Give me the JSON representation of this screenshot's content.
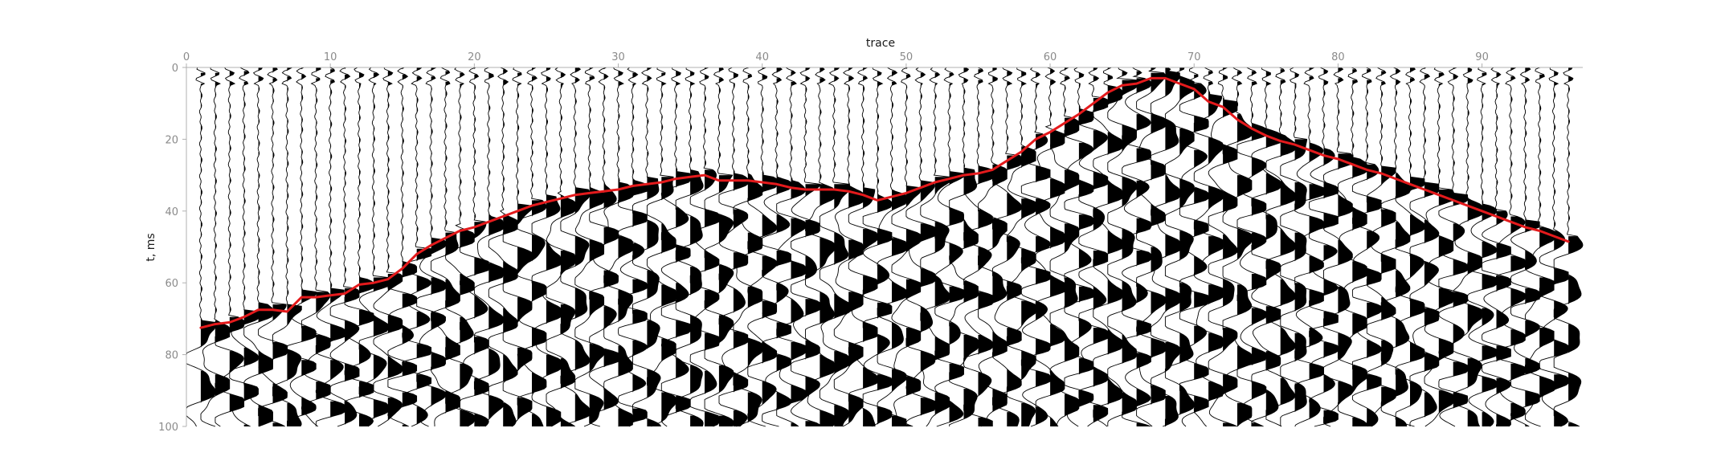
{
  "chart_data": {
    "type": "seismic-wiggle",
    "xlabel": "trace",
    "ylabel": "t, ms",
    "x_axis_position": "top",
    "xlim": [
      0,
      97
    ],
    "ylim": [
      0,
      100
    ],
    "y_inverted": true,
    "xticks": [
      0,
      10,
      20,
      30,
      40,
      50,
      60,
      70,
      80,
      90
    ],
    "yticks": [
      0,
      20,
      40,
      60,
      80,
      100
    ],
    "trace_count": 96,
    "colors": {
      "fill": "#000000",
      "trace": "#000000",
      "pick": "#e41a1c",
      "tick": "#8a8a8a"
    },
    "first_break_pick": {
      "name": "",
      "points": [
        [
          1,
          72.5
        ],
        [
          2,
          71.5
        ],
        [
          3,
          71
        ],
        [
          4,
          69.5
        ],
        [
          5,
          67.5
        ],
        [
          6,
          67.5
        ],
        [
          7,
          68
        ],
        [
          8,
          64
        ],
        [
          9,
          64
        ],
        [
          10,
          63.5
        ],
        [
          11,
          63
        ],
        [
          12,
          60.5
        ],
        [
          13,
          60
        ],
        [
          14,
          59
        ],
        [
          15,
          56
        ],
        [
          16,
          52
        ],
        [
          17,
          49.5
        ],
        [
          18,
          47.5
        ],
        [
          19,
          45.5
        ],
        [
          20,
          44.5
        ],
        [
          21,
          43
        ],
        [
          22,
          41.5
        ],
        [
          23,
          40
        ],
        [
          24,
          38.5
        ],
        [
          25,
          37.5
        ],
        [
          26,
          36.5
        ],
        [
          27,
          35.5
        ],
        [
          28,
          35
        ],
        [
          29,
          34.5
        ],
        [
          30,
          34
        ],
        [
          31,
          33
        ],
        [
          32,
          32.5
        ],
        [
          33,
          32
        ],
        [
          34,
          31
        ],
        [
          35,
          30.5
        ],
        [
          36,
          30
        ],
        [
          37,
          31.5
        ],
        [
          38,
          31.5
        ],
        [
          39,
          31.5
        ],
        [
          40,
          32
        ],
        [
          41,
          32.5
        ],
        [
          42,
          33.5
        ],
        [
          43,
          34
        ],
        [
          44,
          34
        ],
        [
          45,
          34
        ],
        [
          46,
          34.5
        ],
        [
          47,
          35.5
        ],
        [
          48,
          37
        ],
        [
          49,
          36
        ],
        [
          50,
          35
        ],
        [
          51,
          33.5
        ],
        [
          52,
          32
        ],
        [
          53,
          31
        ],
        [
          54,
          30
        ],
        [
          55,
          29.5
        ],
        [
          56,
          28.5
        ],
        [
          57,
          26
        ],
        [
          58,
          23.5
        ],
        [
          59,
          20
        ],
        [
          60,
          18
        ],
        [
          61,
          15.5
        ],
        [
          62,
          13
        ],
        [
          63,
          10
        ],
        [
          64,
          7
        ],
        [
          65,
          5
        ],
        [
          66,
          4.5
        ],
        [
          67,
          3
        ],
        [
          68,
          3
        ],
        [
          69,
          4.5
        ],
        [
          70,
          6
        ],
        [
          71,
          9.5
        ],
        [
          72,
          11
        ],
        [
          73,
          14.5
        ],
        [
          74,
          17
        ],
        [
          75,
          19
        ],
        [
          76,
          20.5
        ],
        [
          77,
          21.5
        ],
        [
          78,
          23
        ],
        [
          79,
          24.5
        ],
        [
          80,
          25.5
        ],
        [
          81,
          27
        ],
        [
          82,
          28.5
        ],
        [
          83,
          29.5
        ],
        [
          84,
          31
        ],
        [
          85,
          32.5
        ],
        [
          86,
          34
        ],
        [
          87,
          35.5
        ],
        [
          88,
          37
        ],
        [
          89,
          38.5
        ],
        [
          90,
          40
        ],
        [
          91,
          41.5
        ],
        [
          92,
          43
        ],
        [
          93,
          44.5
        ],
        [
          94,
          45.5
        ],
        [
          95,
          47
        ],
        [
          96,
          48.5
        ]
      ]
    }
  }
}
